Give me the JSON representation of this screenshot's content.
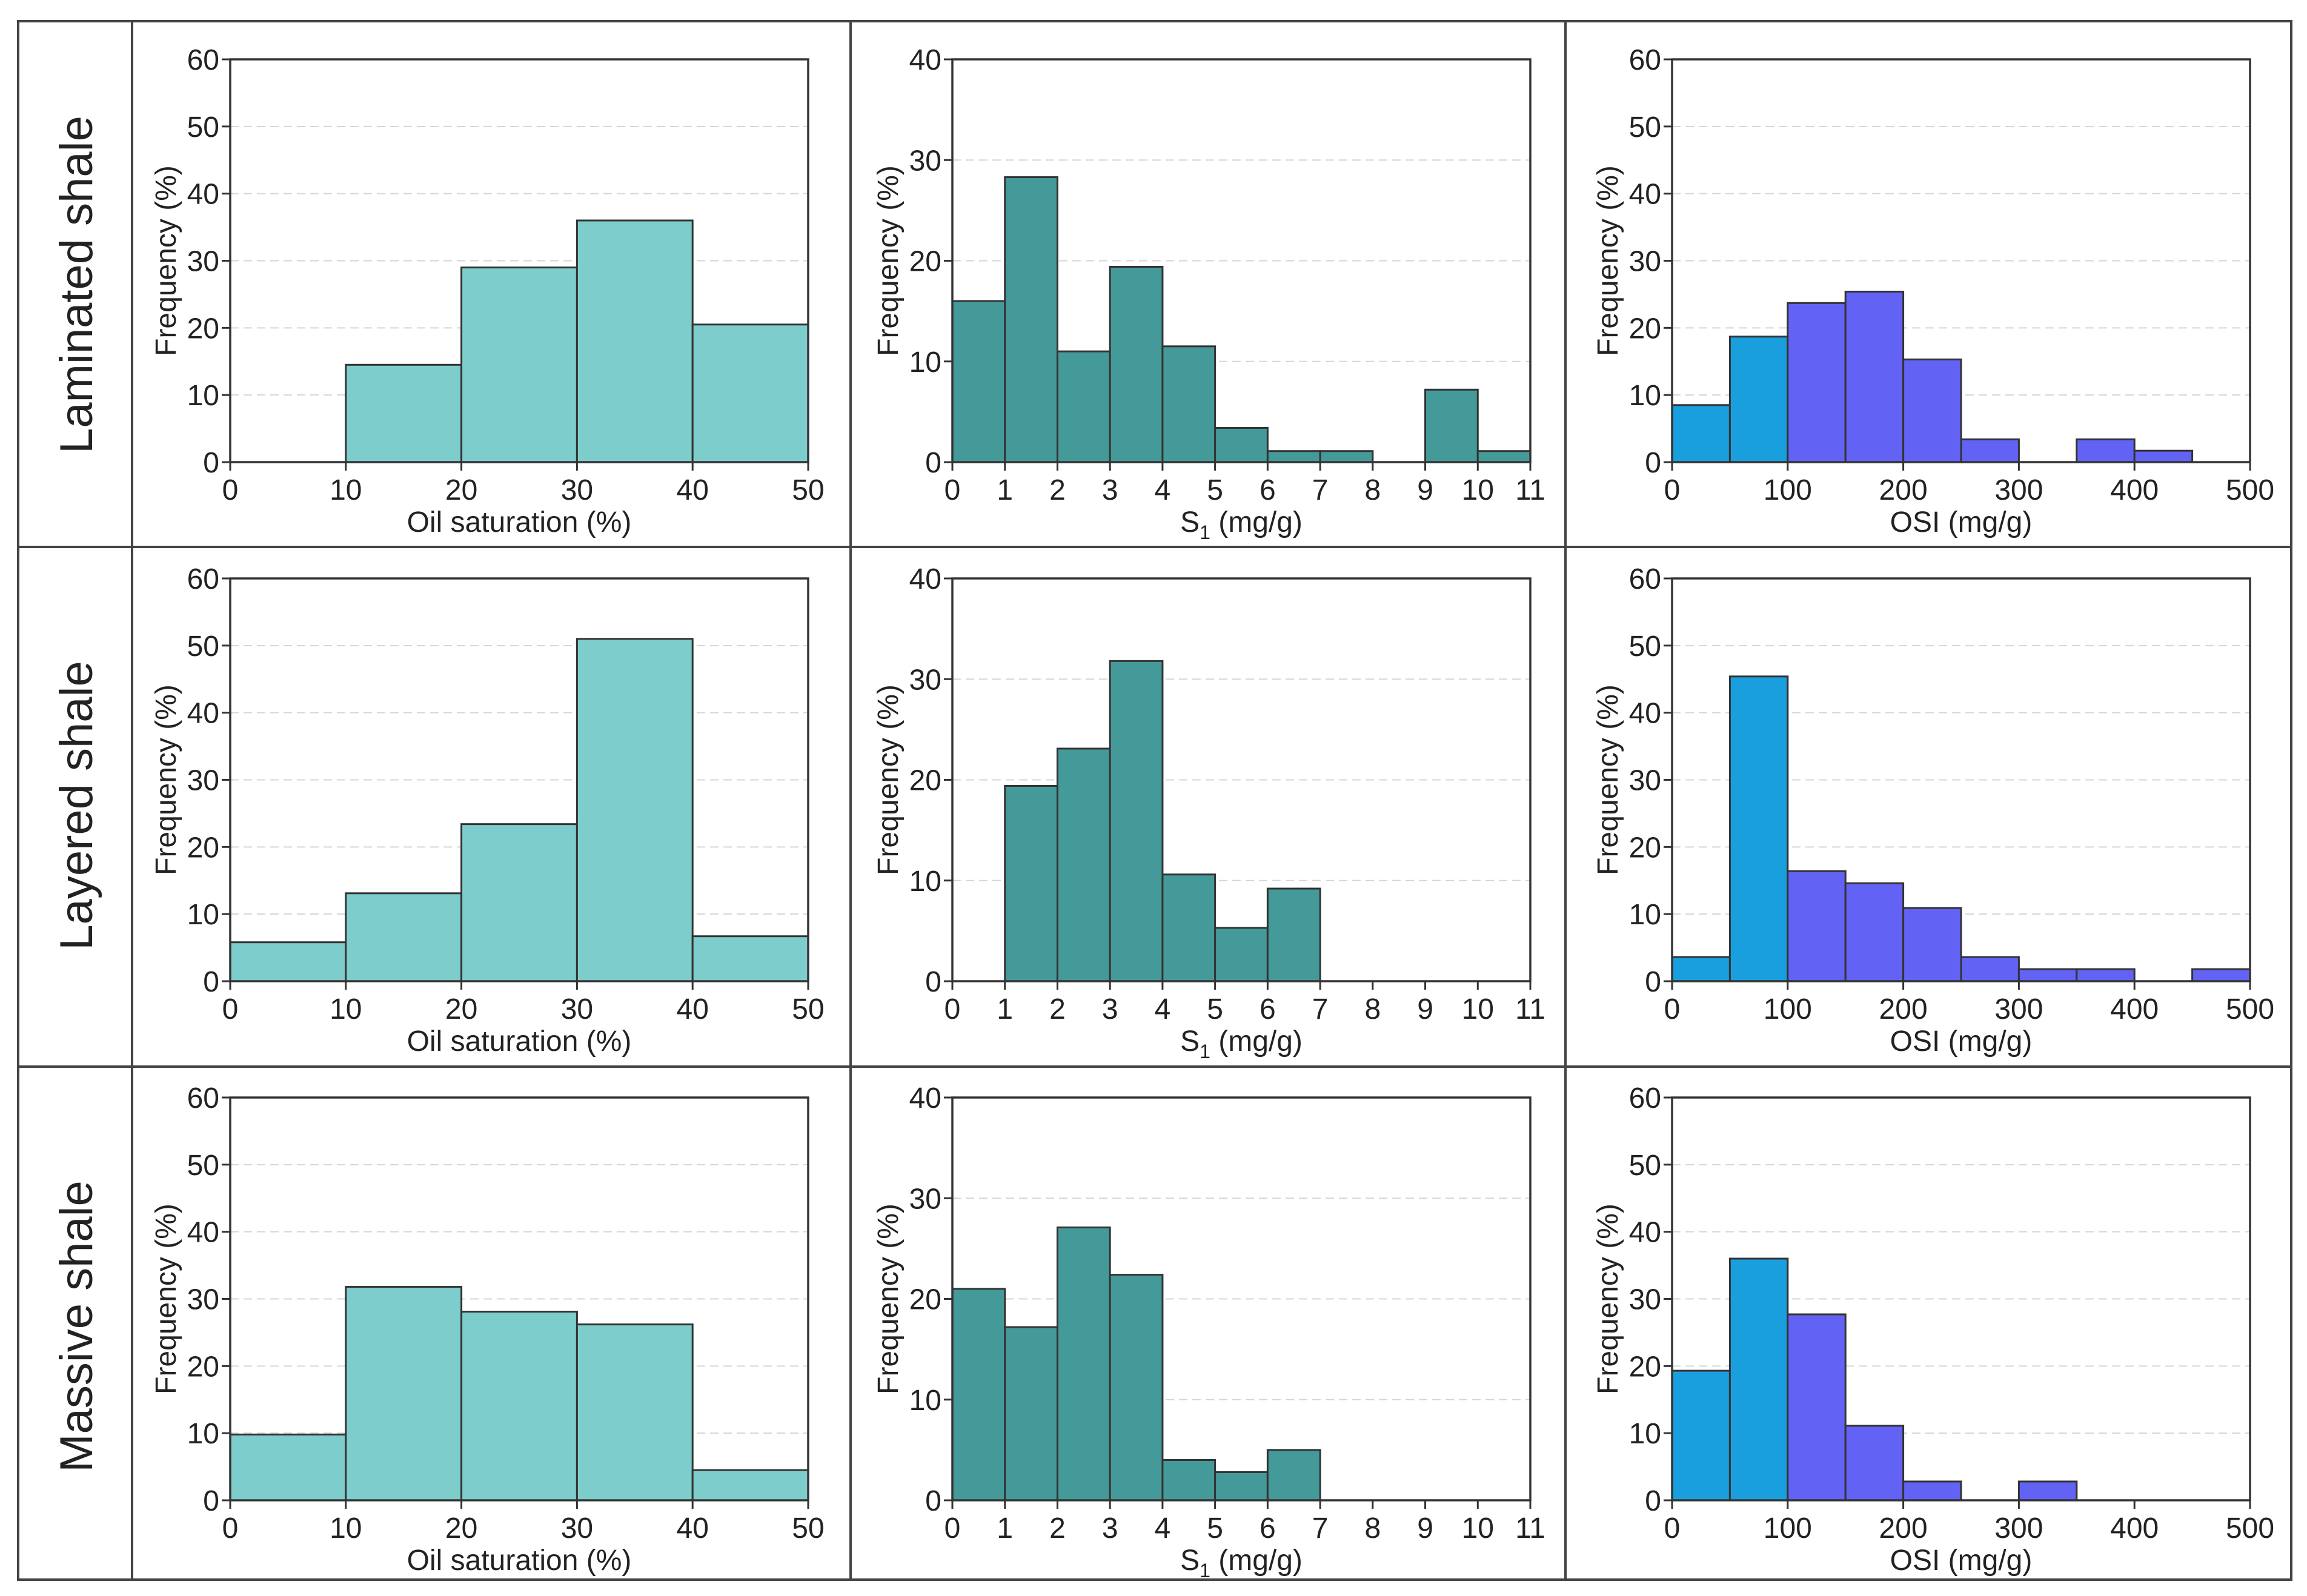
{
  "figure": {
    "row_labels": [
      "Laminated shale",
      "Layered shale",
      "Massive shale"
    ],
    "colors": {
      "oil_saturation": "#7ecdcd",
      "s1": "#449a99",
      "osi_low": "#1a9fde",
      "osi_high": "#6262f5",
      "edge": "#333333",
      "grid": "#d6d6d6",
      "frame": "#444444"
    }
  },
  "chart_data": [
    {
      "type": "bar",
      "row": "Laminated shale",
      "variable": "oil_saturation",
      "xlabel": "Oil saturation (%)",
      "ylabel": "Frequency (%)",
      "xlim": [
        0,
        50
      ],
      "ylim": [
        0,
        60
      ],
      "xticks": [
        0,
        10,
        20,
        30,
        40,
        50
      ],
      "yticks": [
        0,
        10,
        20,
        30,
        40,
        50,
        60
      ],
      "bin_edges": [
        0,
        10,
        20,
        30,
        40,
        50
      ],
      "values": [
        0,
        14.5,
        29,
        36,
        20.5
      ]
    },
    {
      "type": "bar",
      "row": "Laminated shale",
      "variable": "s1",
      "xlabel_main": "S",
      "xlabel_sub": "1",
      "xlabel_rest": " (mg/g)",
      "ylabel": "Frequency (%)",
      "xlim": [
        0,
        11
      ],
      "ylim": [
        0,
        40
      ],
      "xticks": [
        0,
        1,
        2,
        3,
        4,
        5,
        6,
        7,
        8,
        9,
        10,
        11
      ],
      "yticks": [
        0,
        10,
        20,
        30,
        40
      ],
      "bin_edges": [
        0,
        1,
        2,
        3,
        4,
        5,
        6,
        7,
        8,
        9,
        10,
        11
      ],
      "values": [
        16,
        28.3,
        11,
        19.4,
        11.5,
        3.4,
        1.1,
        1.1,
        0,
        7.2,
        1.1
      ]
    },
    {
      "type": "bar",
      "row": "Laminated shale",
      "variable": "osi",
      "xlabel": "OSI (mg/g)",
      "ylabel": "Frequency (%)",
      "xlim": [
        0,
        500
      ],
      "ylim": [
        0,
        60
      ],
      "xticks": [
        0,
        100,
        200,
        300,
        400,
        500
      ],
      "yticks": [
        0,
        10,
        20,
        30,
        40,
        50,
        60
      ],
      "bin_edges": [
        0,
        50,
        100,
        150,
        200,
        250,
        300,
        350,
        400,
        450,
        500
      ],
      "values": [
        8.5,
        18.7,
        23.7,
        25.4,
        15.3,
        3.4,
        0,
        3.4,
        1.7,
        0
      ]
    },
    {
      "type": "bar",
      "row": "Layered shale",
      "variable": "oil_saturation",
      "xlabel": "Oil saturation (%)",
      "ylabel": "Frequency (%)",
      "xlim": [
        0,
        50
      ],
      "ylim": [
        0,
        60
      ],
      "xticks": [
        0,
        10,
        20,
        30,
        40,
        50
      ],
      "yticks": [
        0,
        10,
        20,
        30,
        40,
        50,
        60
      ],
      "bin_edges": [
        0,
        10,
        20,
        30,
        40,
        50
      ],
      "values": [
        5.8,
        13.1,
        23.4,
        51,
        6.7
      ]
    },
    {
      "type": "bar",
      "row": "Layered shale",
      "variable": "s1",
      "xlabel_main": "S",
      "xlabel_sub": "1",
      "xlabel_rest": " (mg/g)",
      "ylabel": "Frequency (%)",
      "xlim": [
        0,
        11
      ],
      "ylim": [
        0,
        40
      ],
      "xticks": [
        0,
        1,
        2,
        3,
        4,
        5,
        6,
        7,
        8,
        9,
        10,
        11
      ],
      "yticks": [
        0,
        10,
        20,
        30,
        40
      ],
      "bin_edges": [
        0,
        1,
        2,
        3,
        4,
        5,
        6,
        7,
        8,
        9,
        10,
        11
      ],
      "values": [
        0,
        19.4,
        23.1,
        31.8,
        10.6,
        5.3,
        9.2,
        0,
        0,
        0,
        0
      ]
    },
    {
      "type": "bar",
      "row": "Layered shale",
      "variable": "osi",
      "xlabel": "OSI (mg/g)",
      "ylabel": "Frequency (%)",
      "xlim": [
        0,
        500
      ],
      "ylim": [
        0,
        60
      ],
      "xticks": [
        0,
        100,
        200,
        300,
        400,
        500
      ],
      "yticks": [
        0,
        10,
        20,
        30,
        40,
        50,
        60
      ],
      "bin_edges": [
        0,
        50,
        100,
        150,
        200,
        250,
        300,
        350,
        400,
        450,
        500
      ],
      "values": [
        3.6,
        45.4,
        16.4,
        14.6,
        10.9,
        3.6,
        1.8,
        1.8,
        0,
        1.8
      ]
    },
    {
      "type": "bar",
      "row": "Massive shale",
      "variable": "oil_saturation",
      "xlabel": "Oil saturation (%)",
      "ylabel": "Frequency (%)",
      "xlim": [
        0,
        50
      ],
      "ylim": [
        0,
        60
      ],
      "xticks": [
        0,
        10,
        20,
        30,
        40,
        50
      ],
      "yticks": [
        0,
        10,
        20,
        30,
        40,
        50,
        60
      ],
      "bin_edges": [
        0,
        10,
        20,
        30,
        40,
        50
      ],
      "values": [
        9.8,
        31.8,
        28.1,
        26.2,
        4.5
      ]
    },
    {
      "type": "bar",
      "row": "Massive shale",
      "variable": "s1",
      "xlabel_main": "S",
      "xlabel_sub": "1",
      "xlabel_rest": " (mg/g)",
      "ylabel": "Frequency (%)",
      "xlim": [
        0,
        11
      ],
      "ylim": [
        0,
        40
      ],
      "xticks": [
        0,
        1,
        2,
        3,
        4,
        5,
        6,
        7,
        8,
        9,
        10,
        11
      ],
      "yticks": [
        0,
        10,
        20,
        30,
        40
      ],
      "bin_edges": [
        0,
        1,
        2,
        3,
        4,
        5,
        6,
        7,
        8,
        9,
        10,
        11
      ],
      "values": [
        21,
        17.2,
        27.1,
        22.4,
        4,
        2.8,
        5,
        0,
        0,
        0,
        0
      ]
    },
    {
      "type": "bar",
      "row": "Massive shale",
      "variable": "osi",
      "xlabel": "OSI (mg/g)",
      "ylabel": "Frequency (%)",
      "xlim": [
        0,
        500
      ],
      "ylim": [
        0,
        60
      ],
      "xticks": [
        0,
        100,
        200,
        300,
        400,
        500
      ],
      "yticks": [
        0,
        10,
        20,
        30,
        40,
        50,
        60
      ],
      "bin_edges": [
        0,
        50,
        100,
        150,
        200,
        250,
        300,
        350,
        400,
        450,
        500
      ],
      "values": [
        19.3,
        36,
        27.7,
        11.1,
        2.8,
        0,
        2.8,
        0,
        0,
        0
      ]
    }
  ]
}
